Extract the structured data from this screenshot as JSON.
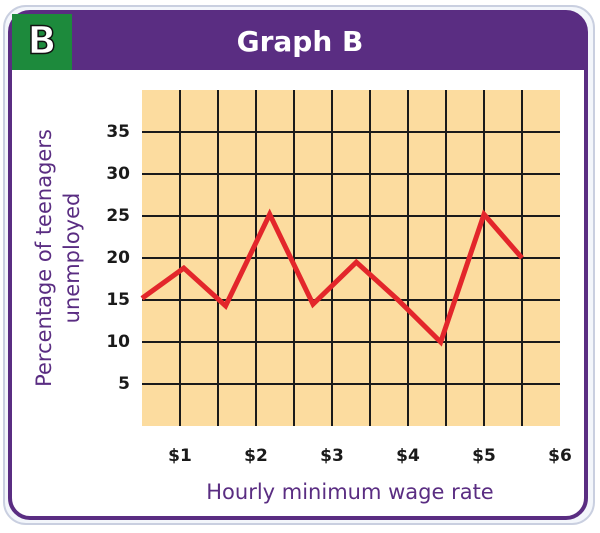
{
  "chart_data": {
    "type": "line",
    "panel_label": "B",
    "title": "Graph B",
    "xlabel": "Hourly minimum wage rate",
    "ylabel": [
      "Percentage of teenagers",
      "unemployed"
    ],
    "x": [
      0.5,
      1.05,
      1.6,
      2.18,
      2.75,
      3.32,
      3.87,
      4.43,
      5.0,
      5.5
    ],
    "series": [
      {
        "name": "Percentage of teenagers unemployed",
        "color": "#e3262b",
        "values": [
          15.2,
          18.8,
          14.3,
          25.2,
          14.5,
          19.5,
          15,
          10,
          25.2,
          20
        ]
      }
    ],
    "xlim": [
      0.5,
      6
    ],
    "xticks": [
      {
        "value": 1,
        "label": "$1"
      },
      {
        "value": 2,
        "label": "$2"
      },
      {
        "value": 3,
        "label": "$3"
      },
      {
        "value": 4,
        "label": "$4"
      },
      {
        "value": 5,
        "label": "$5"
      },
      {
        "value": 6,
        "label": "$6"
      }
    ],
    "ylim": [
      0,
      40
    ],
    "yticks": [
      5,
      10,
      15,
      20,
      25,
      30,
      35
    ],
    "grid": true
  }
}
